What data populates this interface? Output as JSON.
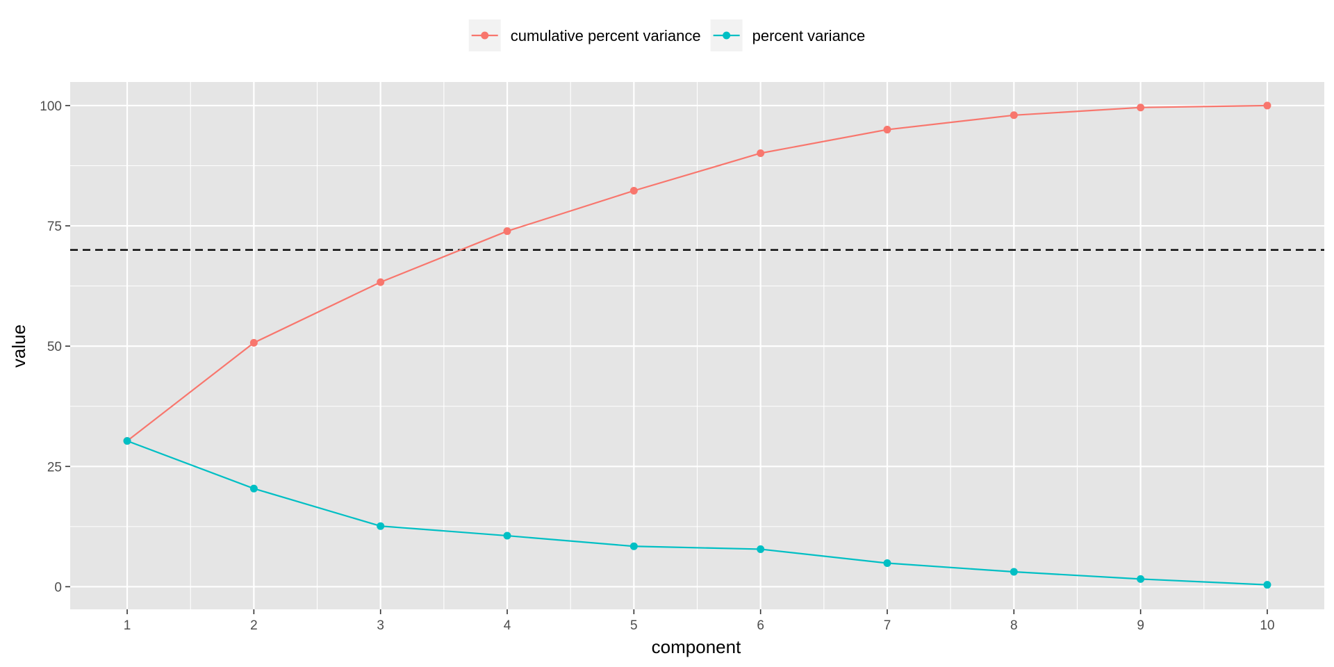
{
  "chart_data": {
    "type": "line",
    "title": "",
    "xlabel": "component",
    "ylabel": "value",
    "x": [
      1,
      2,
      3,
      4,
      5,
      6,
      7,
      8,
      9,
      10
    ],
    "x_ticks": [
      "1",
      "2",
      "3",
      "4",
      "5",
      "6",
      "7",
      "8",
      "9",
      "10"
    ],
    "y_ticks": [
      "0",
      "25",
      "50",
      "75",
      "100"
    ],
    "xlim": [
      0.55,
      10.45
    ],
    "ylim": [
      -4.7,
      104.9
    ],
    "grid": true,
    "legend_position": "top",
    "reference_line": {
      "y": 70,
      "style": "dashed",
      "color": "#000000"
    },
    "series": [
      {
        "name": "cumulative percent variance",
        "color": "#F8766D",
        "values": [
          30.3,
          50.7,
          63.3,
          73.9,
          82.3,
          90.1,
          95.0,
          98.0,
          99.6,
          100.0
        ]
      },
      {
        "name": "percent variance",
        "color": "#00BFC4",
        "values": [
          30.3,
          20.4,
          12.6,
          10.6,
          8.4,
          7.8,
          4.9,
          3.1,
          1.6,
          0.4
        ]
      }
    ],
    "panel_background": "#E5E5E5"
  }
}
